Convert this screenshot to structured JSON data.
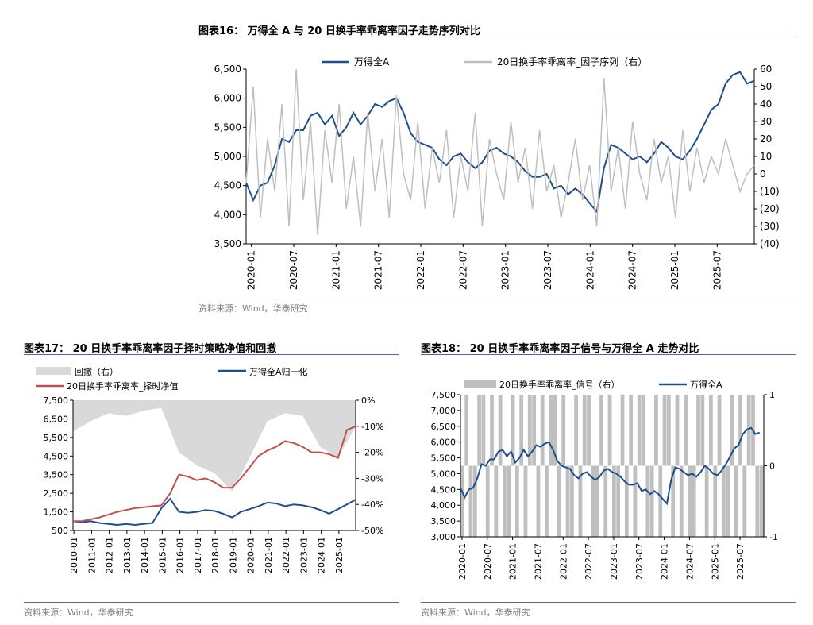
{
  "colors": {
    "navy": "#1f4e8c",
    "gray": "#bfbfbf",
    "red": "#c0504d",
    "rule": "#4f6b8f",
    "source": "#7f7f7f"
  },
  "fig16": {
    "title": "图表16： 万得全 A 与 20 日换手率乖离率因子走势序列对比",
    "source": "资料来源：Wind，华泰研究",
    "chart_data": {
      "type": "line",
      "title": "万得全A与20日换手率乖离率因子走势序列对比",
      "legend": [
        "万得全A",
        "20日换手率乖离率_因子序列（右）"
      ],
      "x_ticks": [
        "2020-01",
        "2020-07",
        "2021-01",
        "2021-07",
        "2022-01",
        "2022-07",
        "2023-01",
        "2023-07",
        "2024-01",
        "2024-07",
        "2025-01",
        "2025-07"
      ],
      "y_left_ticks": [
        "6,500",
        "6,000",
        "5,500",
        "5,000",
        "4,500",
        "4,000",
        "3,500"
      ],
      "y_right_ticks": [
        "60",
        "50",
        "40",
        "30",
        "20",
        "10",
        "0",
        "(10)",
        "(20)",
        "(30)",
        "(40)"
      ],
      "ylim_left": [
        3500,
        6500
      ],
      "ylim_right": [
        -40,
        60
      ],
      "series": [
        {
          "name": "万得全A",
          "axis": "left",
          "x": [
            0,
            1,
            2,
            3,
            4,
            5,
            6,
            7,
            8,
            9,
            10,
            11,
            12,
            13,
            14,
            15,
            16,
            17,
            18,
            19,
            20,
            21,
            22,
            23,
            24,
            25,
            26,
            27,
            28,
            29,
            30,
            31,
            32,
            33,
            34,
            35,
            36,
            37,
            38,
            39,
            40,
            41,
            42,
            43,
            44,
            45,
            46,
            47,
            48,
            49,
            50,
            51,
            52,
            53,
            54,
            55,
            56,
            57,
            58,
            59,
            60,
            61,
            62,
            63,
            64,
            65,
            66,
            67,
            68,
            69,
            70,
            71
          ],
          "values": [
            4550,
            4250,
            4500,
            4550,
            4850,
            5300,
            5250,
            5450,
            5450,
            5700,
            5750,
            5550,
            5700,
            5350,
            5500,
            5750,
            5550,
            5700,
            5900,
            5850,
            5950,
            6000,
            5750,
            5400,
            5250,
            5200,
            5150,
            4950,
            4850,
            5000,
            5050,
            4900,
            4800,
            4900,
            5100,
            5150,
            5050,
            5000,
            4900,
            4750,
            4650,
            4650,
            4700,
            4450,
            4500,
            4350,
            4450,
            4350,
            4200,
            4050,
            4800,
            5200,
            5150,
            5050,
            4950,
            5000,
            4900,
            5050,
            5250,
            5150,
            5000,
            4950,
            5100,
            5300,
            5550,
            5800,
            5900,
            6250,
            6400,
            6450,
            6250,
            6300
          ]
        },
        {
          "name": "20日换手率乖离率_因子序列（右）",
          "axis": "right",
          "x": [
            0,
            1,
            2,
            3,
            4,
            5,
            6,
            7,
            8,
            9,
            10,
            11,
            12,
            13,
            14,
            15,
            16,
            17,
            18,
            19,
            20,
            21,
            22,
            23,
            24,
            25,
            26,
            27,
            28,
            29,
            30,
            31,
            32,
            33,
            34,
            35,
            36,
            37,
            38,
            39,
            40,
            41,
            42,
            43,
            44,
            45,
            46,
            47,
            48,
            49,
            50,
            51,
            52,
            53,
            54,
            55,
            56,
            57,
            58,
            59,
            60,
            61,
            62,
            63,
            64,
            65,
            66,
            67,
            68,
            69,
            70,
            71
          ],
          "values": [
            -5,
            50,
            -25,
            20,
            -10,
            40,
            -30,
            60,
            -15,
            30,
            -35,
            25,
            -5,
            40,
            -20,
            10,
            -30,
            35,
            -10,
            20,
            -25,
            45,
            0,
            -15,
            30,
            -20,
            15,
            -5,
            25,
            -25,
            10,
            -10,
            35,
            -30,
            20,
            0,
            -15,
            30,
            -5,
            15,
            -20,
            25,
            -10,
            5,
            -25,
            -5,
            20,
            -15,
            5,
            -30,
            55,
            -10,
            15,
            -20,
            30,
            0,
            -15,
            20,
            -5,
            10,
            -25,
            25,
            -10,
            15,
            -5,
            10,
            0,
            20,
            5,
            -10,
            0,
            5
          ]
        }
      ]
    }
  },
  "fig17": {
    "title": "图表17： 20 日换手率乖离率因子择时策略净值和回撤",
    "source": "资料来源：Wind，华泰研究",
    "chart_data": {
      "type": "line",
      "legend": [
        "回撤（右）",
        "万得全A归一化",
        "20日换手率乖离率_择时净值"
      ],
      "x_ticks": [
        "2010-01",
        "2011-01",
        "2012-01",
        "2013-01",
        "2014-01",
        "2015-01",
        "2016-01",
        "2017-01",
        "2018-01",
        "2019-01",
        "2020-01",
        "2021-01",
        "2022-01",
        "2023-01",
        "2024-01",
        "2025-01"
      ],
      "y_left_ticks": [
        "7,500",
        "6,500",
        "5,500",
        "4,500",
        "3,500",
        "2,500",
        "1,500",
        "500"
      ],
      "y_right_ticks": [
        "0%",
        "-10%",
        "-20%",
        "-30%",
        "-40%",
        "-50%"
      ],
      "ylim_left": [
        500,
        7500
      ],
      "ylim_right": [
        -50,
        0
      ],
      "series": [
        {
          "name": "回撤（右）",
          "type": "area",
          "axis": "right",
          "x": [
            0,
            1,
            2,
            3,
            4,
            5,
            6,
            7,
            8,
            9,
            10,
            11,
            12,
            13,
            14,
            15,
            16
          ],
          "values": [
            -12,
            -8,
            -5,
            -6,
            -4,
            -3,
            -20,
            -25,
            -28,
            -35,
            -22,
            -8,
            -5,
            -6,
            -18,
            -22,
            -10
          ]
        },
        {
          "name": "万得全A归一化",
          "axis": "left",
          "x": [
            0,
            0.5,
            1,
            1.5,
            2,
            2.5,
            3,
            3.5,
            4,
            4.5,
            5,
            5.5,
            6,
            6.5,
            7,
            7.5,
            8,
            8.5,
            9,
            9.5,
            10,
            10.5,
            11,
            11.5,
            12,
            12.5,
            13,
            13.5,
            14,
            14.5,
            15,
            15.5,
            16
          ],
          "values": [
            1000,
            950,
            1000,
            900,
            850,
            800,
            850,
            800,
            850,
            900,
            1700,
            2200,
            1500,
            1450,
            1500,
            1600,
            1550,
            1400,
            1200,
            1500,
            1650,
            1800,
            2000,
            1950,
            1800,
            1900,
            1850,
            1750,
            1600,
            1400,
            1650,
            1900,
            2150
          ]
        },
        {
          "name": "20日换手率乖离率_择时净值",
          "axis": "left",
          "x": [
            0,
            0.5,
            1,
            1.5,
            2,
            2.5,
            3,
            3.5,
            4,
            4.5,
            5,
            5.5,
            6,
            6.5,
            7,
            7.5,
            8,
            8.5,
            9,
            9.5,
            10,
            10.5,
            11,
            11.5,
            12,
            12.5,
            13,
            13.5,
            14,
            14.5,
            15,
            15.5,
            16
          ],
          "values": [
            1000,
            1000,
            1100,
            1200,
            1350,
            1500,
            1600,
            1700,
            1750,
            1800,
            1850,
            2500,
            3500,
            3400,
            3200,
            3300,
            3100,
            2800,
            2800,
            3300,
            3900,
            4500,
            4800,
            5000,
            5300,
            5200,
            5000,
            4700,
            4700,
            4600,
            4400,
            5900,
            6100
          ]
        }
      ]
    }
  },
  "fig18": {
    "title": "图表18： 20 日换手率乖离率因子信号与万得全 A 走势对比",
    "source": "资料来源：Wind，华泰研究",
    "chart_data": {
      "type": "bar",
      "legend": [
        "20日换手率乖离率_信号（右）",
        "万得全A"
      ],
      "x_ticks": [
        "2020-01",
        "2020-07",
        "2021-01",
        "2021-07",
        "2022-01",
        "2022-07",
        "2023-01",
        "2023-07",
        "2024-01",
        "2024-07",
        "2025-01",
        "2025-07"
      ],
      "y_left_ticks": [
        "7,500",
        "7,000",
        "6,500",
        "6,000",
        "5,500",
        "5,000",
        "4,500",
        "4,000",
        "3,500",
        "3,000"
      ],
      "y_right_ticks": [
        "1",
        "0",
        "-1"
      ],
      "ylim_left": [
        3000,
        7500
      ],
      "ylim_right": [
        -1,
        1
      ],
      "series": [
        {
          "name": "20日换手率乖离率_信号（右）",
          "axis": "right",
          "x": [
            0,
            1,
            2,
            3,
            4,
            5,
            6,
            7,
            8,
            9,
            10,
            11,
            12,
            13,
            14,
            15,
            16,
            17,
            18,
            19,
            20,
            21,
            22,
            23,
            24,
            25,
            26,
            27,
            28,
            29,
            30,
            31,
            32,
            33,
            34,
            35,
            36,
            37,
            38,
            39,
            40,
            41,
            42,
            43,
            44,
            45,
            46,
            47,
            48,
            49,
            50,
            51,
            52,
            53,
            54,
            55,
            56,
            57,
            58,
            59,
            60,
            61,
            62,
            63,
            64,
            65,
            66,
            67,
            68,
            69,
            70,
            71
          ],
          "values": [
            -1,
            1,
            -1,
            -1,
            1,
            1,
            -1,
            1,
            -1,
            1,
            -1,
            -1,
            1,
            -1,
            1,
            -1,
            1,
            1,
            -1,
            1,
            -1,
            1,
            1,
            -1,
            1,
            -1,
            -1,
            1,
            -1,
            1,
            1,
            -1,
            -1,
            1,
            -1,
            1,
            -1,
            -1,
            1,
            -1,
            1,
            -1,
            1,
            1,
            -1,
            -1,
            1,
            -1,
            1,
            1,
            -1,
            1,
            -1,
            1,
            -1,
            -1,
            1,
            1,
            -1,
            1,
            -1,
            1,
            -1,
            -1,
            1,
            -1,
            1,
            -1,
            1,
            1,
            -1,
            -1
          ]
        },
        {
          "name": "万得全A",
          "axis": "left",
          "x": [
            0,
            1,
            2,
            3,
            4,
            5,
            6,
            7,
            8,
            9,
            10,
            11,
            12,
            13,
            14,
            15,
            16,
            17,
            18,
            19,
            20,
            21,
            22,
            23,
            24,
            25,
            26,
            27,
            28,
            29,
            30,
            31,
            32,
            33,
            34,
            35,
            36,
            37,
            38,
            39,
            40,
            41,
            42,
            43,
            44,
            45,
            46,
            47,
            48,
            49,
            50,
            51,
            52,
            53,
            54,
            55,
            56,
            57,
            58,
            59,
            60,
            61,
            62,
            63,
            64,
            65,
            66,
            67,
            68,
            69,
            70,
            71
          ],
          "values": [
            4550,
            4250,
            4500,
            4550,
            4850,
            5300,
            5250,
            5450,
            5450,
            5700,
            5750,
            5550,
            5700,
            5350,
            5500,
            5750,
            5550,
            5700,
            5900,
            5850,
            5950,
            6000,
            5750,
            5400,
            5250,
            5200,
            5150,
            4950,
            4850,
            5000,
            5050,
            4900,
            4800,
            4900,
            5100,
            5150,
            5050,
            5000,
            4900,
            4750,
            4650,
            4650,
            4700,
            4450,
            4500,
            4350,
            4450,
            4350,
            4200,
            4050,
            4800,
            5200,
            5150,
            5050,
            4950,
            5000,
            4900,
            5050,
            5250,
            5150,
            5000,
            4950,
            5100,
            5300,
            5550,
            5800,
            5900,
            6250,
            6400,
            6450,
            6250,
            6300
          ]
        }
      ]
    }
  }
}
